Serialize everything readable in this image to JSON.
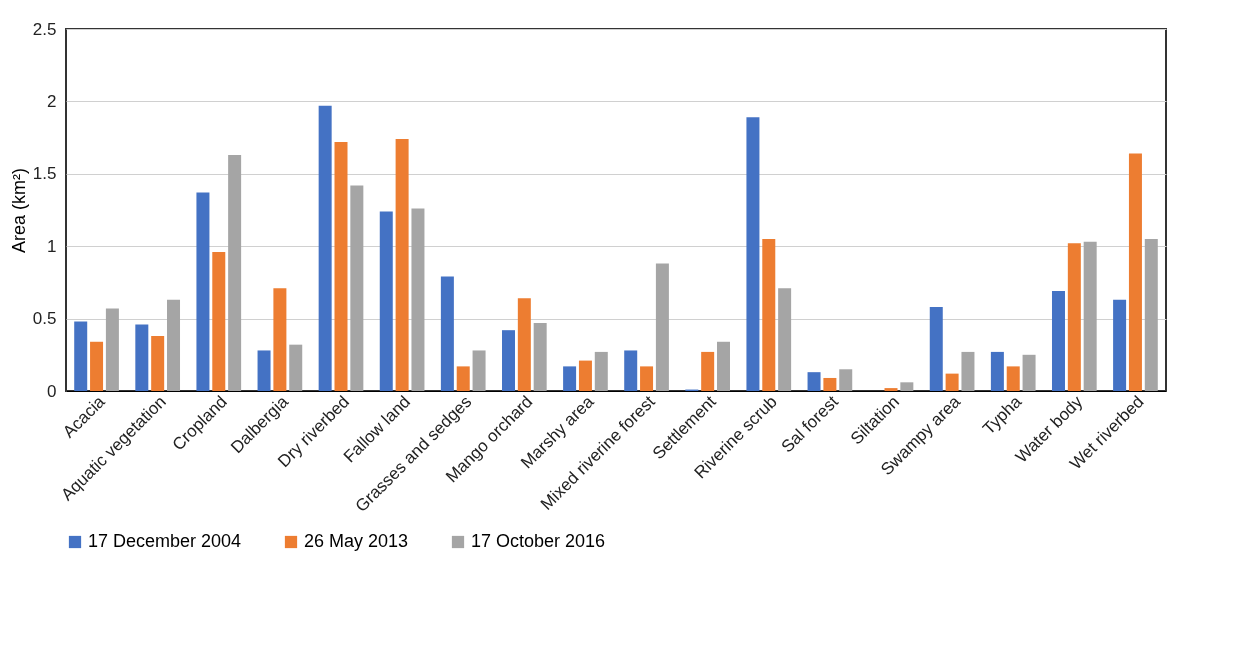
{
  "chart_data": {
    "type": "bar",
    "ylabel": "Area (km²)",
    "categories": [
      "Acacia",
      "Aquatic vegetation",
      "Cropland",
      "Dalbergia",
      "Dry riverbed",
      "Fallow land",
      "Grasses and sedges",
      "Mango orchard",
      "Marshy area",
      "Mixed riverine forest",
      "Settlement",
      "Riverine scrub",
      "Sal forest",
      "Siltation",
      "Swampy area",
      "Typha",
      "Water body",
      "Wet riverbed"
    ],
    "series": [
      {
        "name": "17 December 2004",
        "color": "#4472c4",
        "values": [
          0.48,
          0.46,
          1.37,
          0.28,
          1.97,
          1.24,
          0.79,
          0.42,
          0.17,
          0.28,
          0.01,
          1.89,
          0.13,
          0,
          0.58,
          0.27,
          0.69,
          0.63
        ]
      },
      {
        "name": "26 May 2013",
        "color": "#ed7d31",
        "values": [
          0.34,
          0.38,
          0.96,
          0.71,
          1.72,
          1.74,
          0.17,
          0.64,
          0.21,
          0.17,
          0.27,
          1.05,
          0.09,
          0.02,
          0.12,
          0.17,
          1.02,
          1.64
        ]
      },
      {
        "name": "17 October 2016",
        "color": "#a5a5a5",
        "values": [
          0.57,
          0.63,
          1.63,
          0.32,
          1.42,
          1.26,
          0.28,
          0.47,
          0.27,
          0.88,
          0.34,
          0.71,
          0.15,
          0.06,
          0.27,
          0.25,
          1.03,
          1.05
        ]
      }
    ],
    "ylim": [
      0,
      2.5
    ],
    "yticks": [
      0,
      0.5,
      1,
      1.5,
      2,
      2.5
    ],
    "grid": "y",
    "legend": "bottom"
  }
}
